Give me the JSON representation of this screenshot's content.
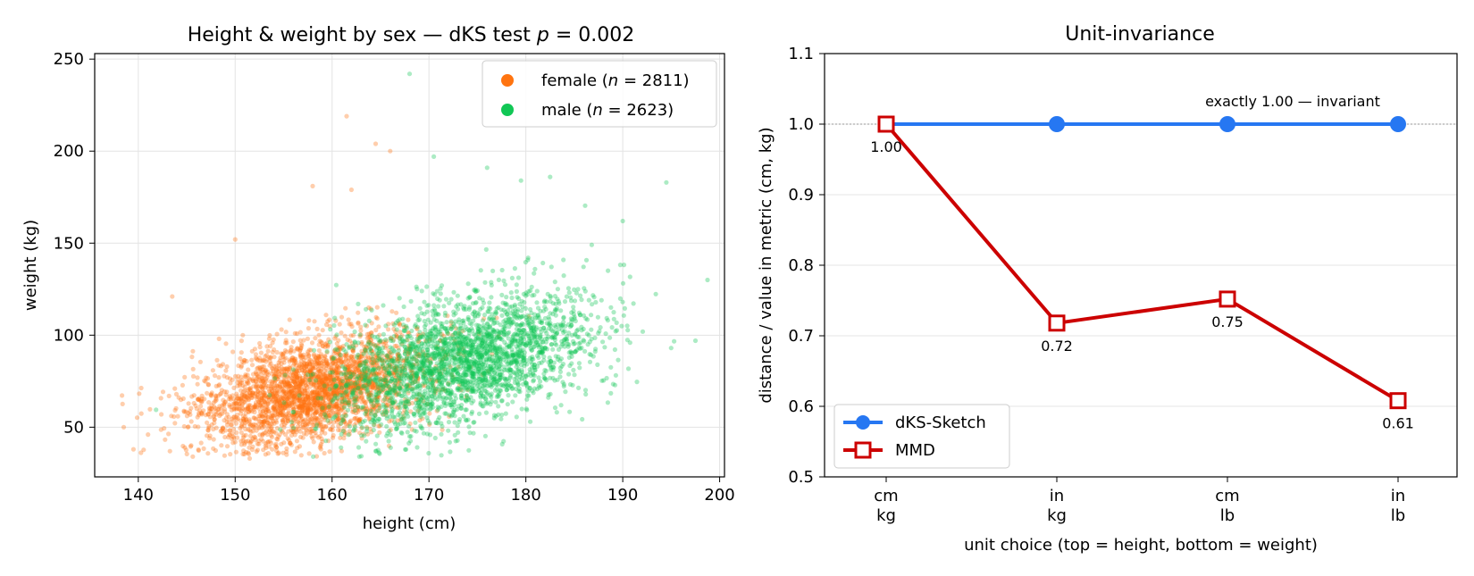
{
  "chart_data": [
    {
      "type": "scatter",
      "title_parts": [
        "Height & weight by sex — dKS test ",
        "p",
        " = 0.002"
      ],
      "xlabel": "height (cm)",
      "ylabel": "weight (kg)",
      "xlim": [
        135.5,
        200.5
      ],
      "ylim": [
        23,
        253
      ],
      "xticks": [
        140,
        150,
        160,
        170,
        180,
        190,
        200
      ],
      "yticks": [
        50,
        100,
        150,
        200,
        250
      ],
      "grid": true,
      "legend_position": "top-right",
      "series": [
        {
          "name_parts": [
            "female (",
            "n",
            " = 2811)"
          ],
          "n": 2811,
          "color": "#ff7410",
          "height_mean": 158,
          "height_sd": 5.9,
          "weight_mean": 70,
          "weight_sd": 15,
          "height_weight_corr": 0.4,
          "outliers": [
            [
              161.5,
              219
            ],
            [
              164.5,
              204
            ],
            [
              166,
              200
            ],
            [
              162,
              179
            ],
            [
              158,
              181
            ],
            [
              150,
              152
            ],
            [
              143.5,
              121
            ],
            [
              138.5,
              50
            ],
            [
              139.5,
              38
            ],
            [
              141,
              46
            ],
            [
              151.5,
              33
            ]
          ]
        },
        {
          "name_parts": [
            "male (",
            "n",
            " = 2623)"
          ],
          "n": 2623,
          "color": "#11c755",
          "height_mean": 173.5,
          "height_sd": 6.6,
          "weight_mean": 86,
          "weight_sd": 18,
          "height_weight_corr": 0.45,
          "outliers": [
            [
              168,
              242
            ],
            [
              170.5,
              197
            ],
            [
              176,
              191
            ],
            [
              182.5,
              186
            ],
            [
              179.5,
              184
            ],
            [
              194.5,
              183
            ],
            [
              190,
              162
            ],
            [
              197.5,
              97
            ],
            [
              195,
              93
            ],
            [
              164.5,
              37
            ],
            [
              168,
              45
            ]
          ]
        }
      ]
    },
    {
      "type": "line",
      "title": "Unit-invariance",
      "xlabel": "unit choice   (top = height,  bottom = weight)",
      "ylabel": "distance  /  value in metric (cm, kg)",
      "categories": [
        [
          "cm",
          "kg"
        ],
        [
          "in",
          "kg"
        ],
        [
          "cm",
          "lb"
        ],
        [
          "in",
          "lb"
        ]
      ],
      "ylim": [
        0.5,
        1.1
      ],
      "yticks": [
        "0.5",
        "0.6",
        "0.7",
        "0.8",
        "0.9",
        "1.0",
        "1.1"
      ],
      "grid": "y",
      "reference_line": 1.0,
      "legend_position": "bottom-left",
      "series": [
        {
          "name": "dKS-Sketch",
          "values": [
            1.0,
            1.0,
            1.0,
            1.0
          ],
          "color": "#2677f2",
          "marker": "circle"
        },
        {
          "name": "MMD",
          "values": [
            1.0,
            0.718,
            0.752,
            0.608
          ],
          "labels": [
            "1.00",
            "0.72",
            "0.75",
            "0.61"
          ],
          "color": "#cc0000",
          "marker": "square-open"
        }
      ],
      "annotation": "exactly 1.00 — invariant"
    }
  ]
}
